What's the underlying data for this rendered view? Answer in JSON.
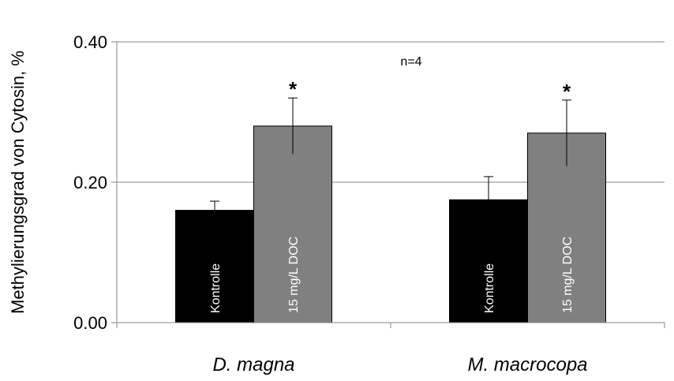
{
  "chart_data": {
    "type": "bar",
    "ylabel": "Methylierungsgrad von Cytosin, %",
    "ylim": [
      0,
      0.4
    ],
    "yticks": [
      "0.00",
      "0.20",
      "0.40"
    ],
    "grid": true,
    "annotation": "n=4",
    "categories": [
      "D. magna",
      "M. macrocopa"
    ],
    "series": [
      {
        "name": "Kontrolle",
        "color": "#000000",
        "values": [
          0.16,
          0.175
        ],
        "errors": [
          0.013,
          0.033
        ]
      },
      {
        "name": "15 mg/L DOC",
        "color": "#808080",
        "values": [
          0.28,
          0.27
        ],
        "errors": [
          0.04,
          0.047
        ]
      }
    ],
    "significance_marker": "*",
    "significant": [
      [
        false,
        false
      ],
      [
        true,
        true
      ]
    ]
  }
}
